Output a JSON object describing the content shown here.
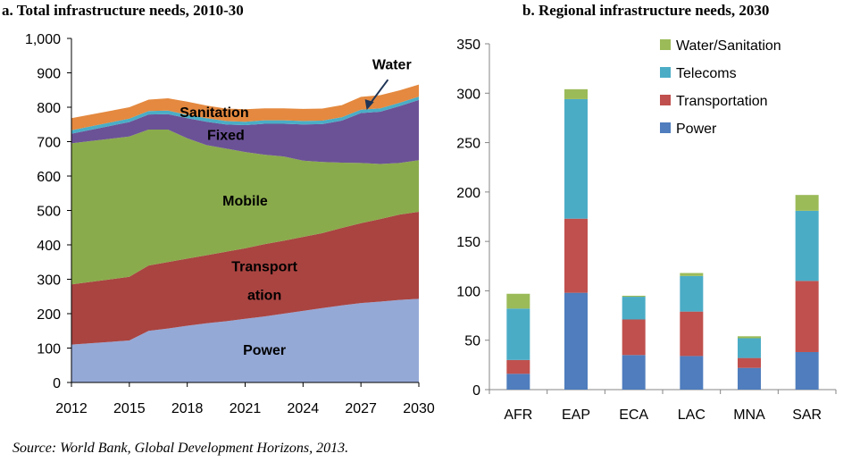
{
  "source": "Source: World Bank, Global Development Horizons, 2013.",
  "chart_data": [
    {
      "type": "area",
      "title": "a. Total infrastructure needs, 2010-30",
      "stacked": true,
      "x": [
        2012,
        2015,
        2016,
        2017,
        2018,
        2019,
        2020,
        2021,
        2022,
        2023,
        2024,
        2025,
        2026,
        2027,
        2028,
        2029,
        2030
      ],
      "xticks": [
        "2012",
        "2015",
        "2018",
        "2021",
        "2024",
        "2027",
        "2030"
      ],
      "yticks": [
        "0",
        "100",
        "200",
        "300",
        "400",
        "500",
        "600",
        "700",
        "800",
        "900",
        "1,000"
      ],
      "ylim": [
        0,
        1000
      ],
      "grid": false,
      "series": [
        {
          "name": "Power",
          "label": "Power",
          "color": "#95a9d6",
          "values": [
            110,
            122,
            150,
            157,
            165,
            172,
            178,
            185,
            192,
            200,
            208,
            216,
            224,
            231,
            235,
            240,
            243
          ]
        },
        {
          "name": "Transportation",
          "label_lines": [
            "Transport",
            "ation"
          ],
          "color": "#a94441",
          "values": [
            175,
            185,
            190,
            193,
            195,
            198,
            202,
            205,
            210,
            212,
            215,
            218,
            225,
            232,
            240,
            248,
            253
          ]
        },
        {
          "name": "Mobile",
          "label": "Mobile",
          "color": "#8aab4c",
          "values": [
            410,
            408,
            395,
            385,
            350,
            320,
            300,
            280,
            260,
            245,
            222,
            207,
            190,
            175,
            160,
            150,
            150
          ]
        },
        {
          "name": "Fixed",
          "label": "Fixed",
          "color": "#6b5296",
          "values": [
            28,
            42,
            44,
            45,
            58,
            68,
            70,
            78,
            90,
            95,
            105,
            110,
            122,
            145,
            152,
            165,
            175
          ]
        },
        {
          "name": "Water",
          "label": "Water",
          "color": "#4aadc6",
          "values": [
            10,
            10,
            10,
            10,
            10,
            10,
            10,
            10,
            10,
            10,
            10,
            10,
            10,
            10,
            10,
            10,
            10
          ]
        },
        {
          "name": "Sanitation",
          "label": "Sanitation",
          "color": "#e4893f",
          "values": [
            35,
            33,
            33,
            36,
            38,
            37,
            36,
            36,
            35,
            35,
            35,
            35,
            35,
            37,
            38,
            36,
            35
          ]
        }
      ]
    },
    {
      "type": "bar",
      "title": "b. Regional infrastructure needs, 2030",
      "stacked": true,
      "categories": [
        "AFR",
        "EAP",
        "ECA",
        "LAC",
        "MNA",
        "SAR"
      ],
      "yticks": [
        "0",
        "50",
        "100",
        "150",
        "200",
        "250",
        "300",
        "350"
      ],
      "ylim": [
        0,
        350
      ],
      "grid": false,
      "legend": "top-right",
      "series": [
        {
          "name": "Power",
          "color": "#4f7dbd",
          "values": [
            16,
            98,
            35,
            34,
            22,
            38
          ]
        },
        {
          "name": "Transportation",
          "color": "#c0504d",
          "values": [
            14,
            75,
            36,
            45,
            10,
            72
          ]
        },
        {
          "name": "Telecoms",
          "color": "#4bacc6",
          "values": [
            52,
            121,
            23,
            36,
            20,
            71
          ]
        },
        {
          "name": "Water/Sanitation",
          "color": "#9bbb59",
          "values": [
            15,
            10,
            1,
            3,
            2,
            16
          ]
        }
      ]
    }
  ]
}
